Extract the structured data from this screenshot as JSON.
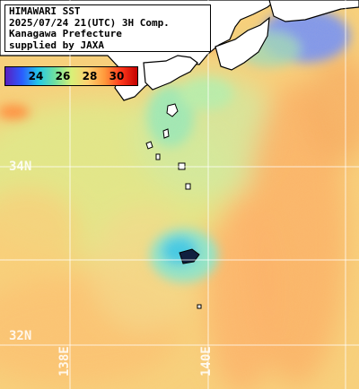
{
  "header": {
    "lines": [
      "HIMAWARI SST",
      "2025/07/24 21(UTC) 3H Comp.",
      "Kanagawa Prefecture",
      "supplied by JAXA"
    ]
  },
  "color_scale": {
    "ticks": [
      "24",
      "26",
      "28",
      "30"
    ],
    "colors": [
      "#5a1fc0",
      "#2a5cff",
      "#24c8e8",
      "#6fe0a0",
      "#d8f078",
      "#ffd070",
      "#ff9a3c",
      "#ff3a1c",
      "#c40000"
    ]
  },
  "grid": {
    "lat_labels": [
      "34N",
      "32N"
    ],
    "lon_labels": [
      "138E",
      "140E"
    ]
  },
  "palette": {
    "land": "#ffffff",
    "coast": "#000000",
    "sea_base": "#f7cf7a",
    "grid": "#ffffff"
  }
}
